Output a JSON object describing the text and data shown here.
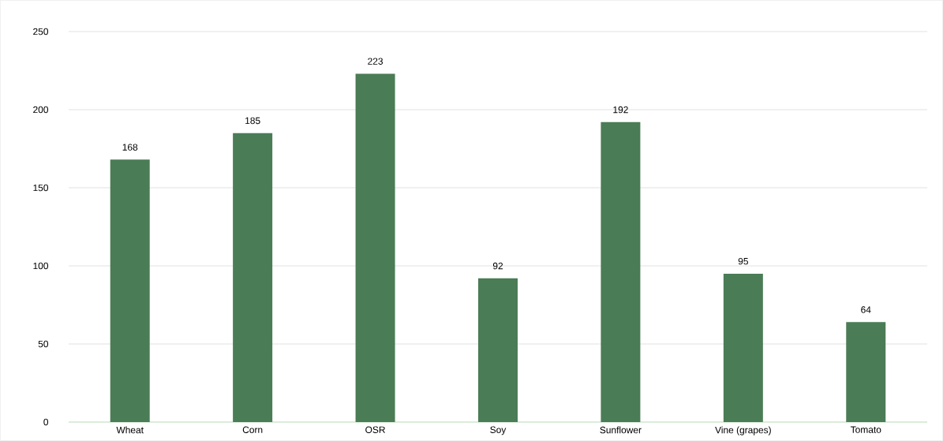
{
  "chart_data": {
    "type": "bar",
    "categories": [
      "Wheat",
      "Corn",
      "OSR",
      "Soy",
      "Sunflower",
      "Vine (grapes)",
      "Tomato"
    ],
    "values": [
      168,
      185,
      223,
      92,
      192,
      95,
      64
    ],
    "color": "#4a7c55",
    "ylim": [
      0,
      250
    ],
    "yticks": [
      0,
      50,
      100,
      150,
      200,
      250
    ],
    "grid": "y",
    "data_labels": true
  }
}
